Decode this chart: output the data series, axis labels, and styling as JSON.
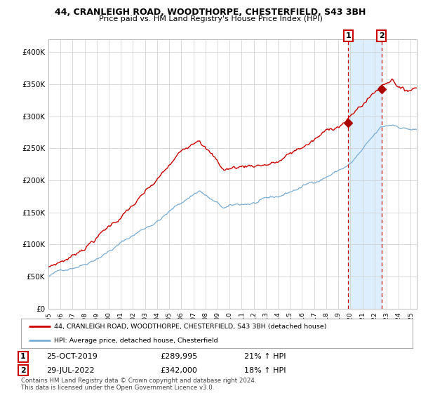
{
  "title_line1": "44, CRANLEIGH ROAD, WOODTHORPE, CHESTERFIELD, S43 3BH",
  "title_line2": "Price paid vs. HM Land Registry's House Price Index (HPI)",
  "ylim": [
    0,
    420000
  ],
  "xlim_start": 1995.0,
  "xlim_end": 2025.5,
  "yticks": [
    0,
    50000,
    100000,
    150000,
    200000,
    250000,
    300000,
    350000,
    400000
  ],
  "ytick_labels": [
    "£0",
    "£50K",
    "£100K",
    "£150K",
    "£200K",
    "£250K",
    "£300K",
    "£350K",
    "£400K"
  ],
  "sale1_date": 2019.82,
  "sale1_price": 289995,
  "sale2_date": 2022.58,
  "sale2_price": 342000,
  "red_line_color": "#cc0000",
  "blue_line_color": "#7aadd4",
  "sale_marker_color": "#aa0000",
  "shaded_region_color": "#ddeeff",
  "legend_text_red": "44, CRANLEIGH ROAD, WOODTHORPE, CHESTERFIELD, S43 3BH (detached house)",
  "legend_text_blue": "HPI: Average price, detached house, Chesterfield",
  "table_row1": [
    "1",
    "25-OCT-2019",
    "£289,995",
    "21% ↑ HPI"
  ],
  "table_row2": [
    "2",
    "29-JUL-2022",
    "£342,000",
    "18% ↑ HPI"
  ],
  "footer": "Contains HM Land Registry data © Crown copyright and database right 2024.\nThis data is licensed under the Open Government Licence v3.0.",
  "background_color": "#ffffff",
  "grid_color": "#cccccc"
}
